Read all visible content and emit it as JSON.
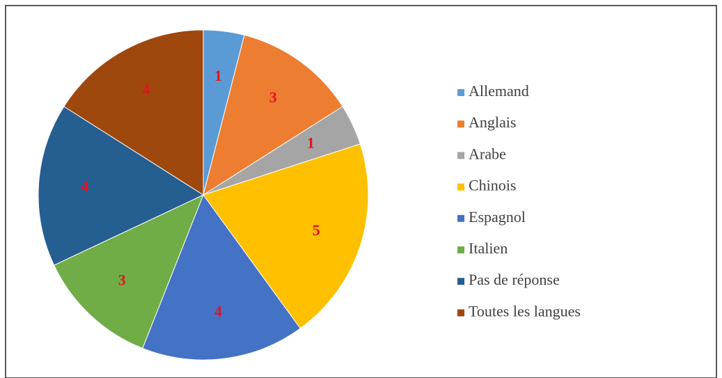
{
  "chart_data": {
    "type": "pie",
    "categories": [
      "Allemand",
      "Anglais",
      "Arabe",
      "Chinois",
      "Espagnol",
      "Italien",
      "Pas de réponse",
      "Toutes les langues"
    ],
    "values": [
      1,
      3,
      1,
      5,
      4,
      3,
      4,
      4
    ],
    "colors": [
      "#5b9bd5",
      "#ed7d31",
      "#a5a5a5",
      "#ffc000",
      "#4472c4",
      "#70ad47",
      "#255e91",
      "#9e480e"
    ],
    "legend": "right"
  }
}
